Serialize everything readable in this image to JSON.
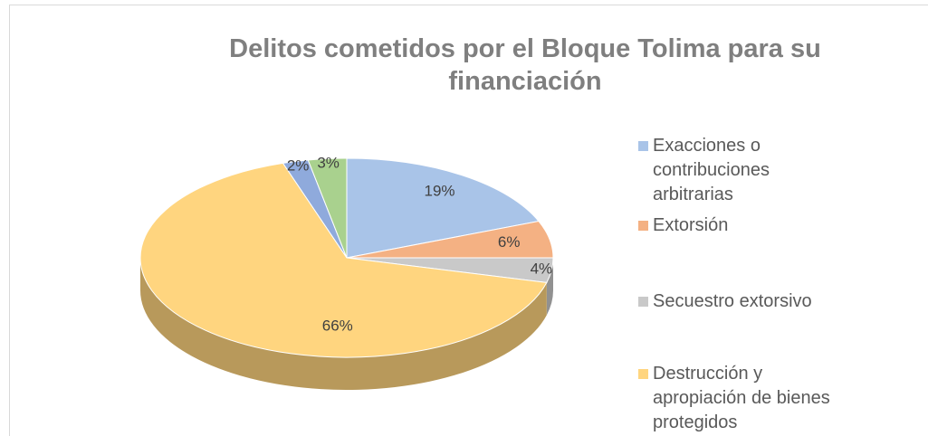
{
  "chart_data": {
    "type": "pie",
    "title": "Delitos cometidos por el Bloque Tolima para su financiación",
    "categories": [
      "Exacciones o contribuciones arbitrarias",
      "Extorsión",
      "Secuestro extorsivo",
      "Destrucción y apropiación de bienes protegidos",
      null,
      null
    ],
    "values": [
      19,
      6,
      4,
      66,
      2,
      3
    ],
    "value_labels": [
      "19%",
      "6%",
      "4%",
      "66%",
      "2%",
      "3%"
    ],
    "colors": [
      "#a9c4e8",
      "#f4b183",
      "#c9c9c9",
      "#ffd57f",
      "#8faadc",
      "#a9d18e"
    ]
  }
}
